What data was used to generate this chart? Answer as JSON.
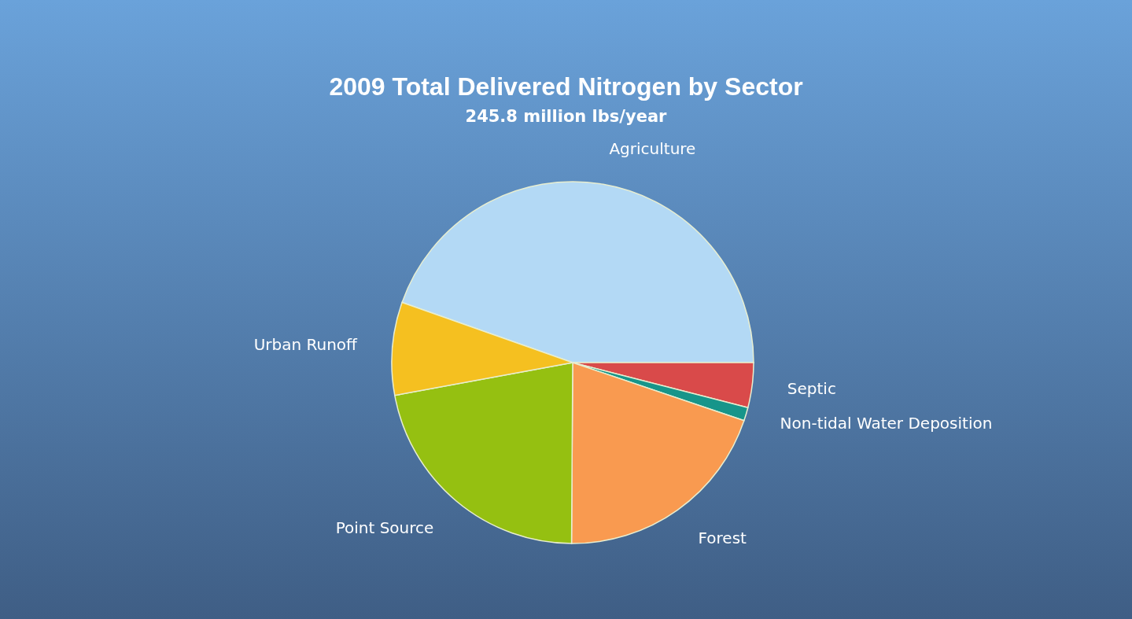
{
  "chart_data": {
    "type": "pie",
    "title": "2009 Total Delivered Nitrogen by Sector",
    "subtitle": "245.8 million lbs/year",
    "categories": [
      "Agriculture",
      "Septic",
      "Non-tidal Water Deposition",
      "Forest",
      "Point Source",
      "Urban Runoff"
    ],
    "values": [
      44.6,
      4.0,
      1.2,
      19.9,
      22.0,
      8.3
    ],
    "colors": [
      "#b3d9f5",
      "#d94a4a",
      "#17958a",
      "#f99a50",
      "#95c011",
      "#f5c020"
    ],
    "legend": false
  }
}
